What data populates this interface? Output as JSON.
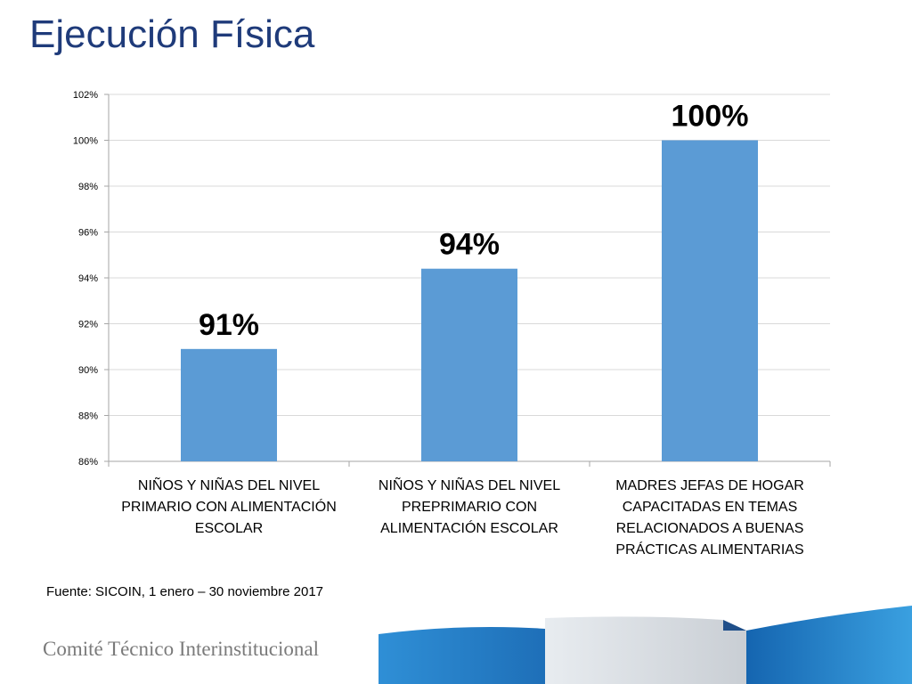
{
  "slide": {
    "title": "Ejecución Física",
    "source": "Fuente: SICOIN, 1 enero – 30 noviembre 2017",
    "organization": "Comité Técnico Interinstitucional"
  },
  "colors": {
    "bar": "#5b9bd5",
    "title": "#1f3b7a",
    "gridline": "#d9d9d9",
    "footer_blue": "#1e6fb8"
  },
  "chart_data": {
    "type": "bar",
    "categories": [
      [
        "NIÑOS Y NIÑAS DEL NIVEL",
        "PRIMARIO CON ALIMENTACIÓN",
        "ESCOLAR"
      ],
      [
        "NIÑOS Y NIÑAS DEL NIVEL",
        "PREPRIMARIO CON",
        "ALIMENTACIÓN ESCOLAR"
      ],
      [
        "MADRES JEFAS DE HOGAR",
        "CAPACITADAS EN TEMAS",
        "RELACIONADOS A BUENAS",
        "PRÁCTICAS ALIMENTARIAS"
      ]
    ],
    "values": [
      90.9,
      94.4,
      100
    ],
    "data_labels": [
      "91%",
      "94%",
      "100%"
    ],
    "ylim": [
      86,
      102
    ],
    "y_ticks": [
      86,
      88,
      90,
      92,
      94,
      96,
      98,
      100,
      102
    ],
    "y_tick_format": "%",
    "grid": true,
    "legend": "none"
  }
}
